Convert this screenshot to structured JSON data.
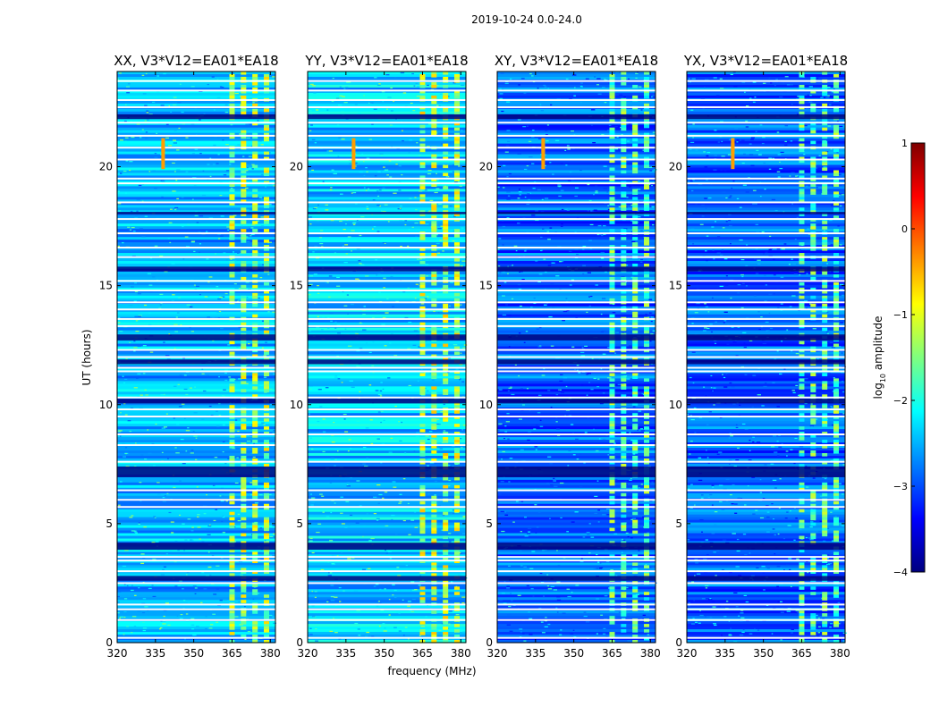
{
  "chart_data": {
    "type": "heatmap",
    "suptitle": "2019-10-24 0.0-24.0",
    "xlabel": "frequency (MHz)",
    "ylabel": "UT (hours)",
    "xlim": [
      320,
      382
    ],
    "ylim": [
      0,
      24
    ],
    "x_ticks": [
      320,
      335,
      350,
      365,
      380
    ],
    "y_ticks": [
      0,
      5,
      10,
      15,
      20
    ],
    "colorbar": {
      "label": "log10 amplitude",
      "label_base": "log",
      "label_sub": "10",
      "label_rest": " amplitude",
      "range": [
        -4,
        1
      ],
      "ticks": [
        1,
        0,
        -1,
        -2,
        -3,
        -4
      ],
      "tick_labels": [
        "1",
        "0",
        "−1",
        "−2",
        "−3",
        "−4"
      ],
      "cmap": [
        "#00007f",
        "#0000ff",
        "#007fff",
        "#00ffff",
        "#7fff7f",
        "#ffff00",
        "#ff7f00",
        "#ff0000",
        "#7f0000"
      ]
    },
    "panels": [
      {
        "title": "XX, V3*V12=EA01*EA18",
        "pol": "XX",
        "level": 0.3
      },
      {
        "title": "YY, V3*V12=EA01*EA18",
        "pol": "YY",
        "level": 0.32
      },
      {
        "title": "XY, V3*V12=EA01*EA18",
        "pol": "XY",
        "level": 0.22
      },
      {
        "title": "YX, V3*V12=EA01*EA18",
        "pol": "YX",
        "level": 0.22
      }
    ],
    "rfi_band_mhz": [
      363,
      380
    ],
    "rfi_channels_mhz": [
      365,
      369.5,
      374,
      378.5
    ],
    "strong_line_mhz": 338,
    "strong_line_hours": [
      [
        19.9,
        21.2
      ],
      [
        20.6,
        21.0
      ]
    ],
    "blank_times_hours": [
      0.2,
      0.95,
      1.4,
      1.6,
      2.5,
      3.0,
      3.45,
      3.6,
      5.7,
      6.0,
      6.4,
      7.6,
      8.3,
      8.75,
      9.5,
      9.8,
      10.3,
      11.4,
      11.55,
      12.0,
      12.3,
      13.3,
      13.6,
      14.0,
      14.3,
      14.8,
      15.2,
      16.2,
      16.6,
      17.2,
      17.8,
      18.5,
      19.3,
      19.5,
      20.3,
      20.8,
      21.3,
      21.85,
      22.5,
      22.8,
      23.2,
      23.6
    ],
    "dark_times_hours": [
      [
        2.6,
        2.8
      ],
      [
        3.9,
        4.2
      ],
      [
        6.95,
        7.4
      ],
      [
        10.05,
        10.25
      ],
      [
        11.7,
        11.9
      ],
      [
        12.7,
        12.95
      ],
      [
        15.6,
        15.8
      ],
      [
        18.0,
        18.1
      ],
      [
        22.0,
        22.2
      ]
    ]
  }
}
